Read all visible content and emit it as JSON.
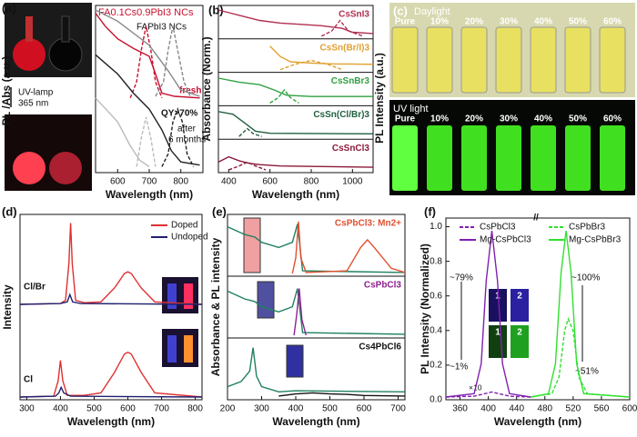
{
  "chart_data": [
    {
      "type": "line",
      "panel": "(a)",
      "xlabel": "Wavelength (nm)",
      "ylabel": "PL /Abs (a.u.)",
      "xlim": [
        530,
        870
      ],
      "xticks": [
        600,
        700,
        800
      ],
      "ylim": [
        0,
        1
      ],
      "annotations": [
        "FA0.1Cs0.9PbI3 NCs",
        "FAPbI3 NCs",
        "fresh",
        "QY>70%",
        "after",
        "6 months",
        "UV-lamp",
        "365 nm"
      ],
      "series": [
        {
          "color": "#c8102e",
          "x": [
            530,
            560,
            600,
            650,
            680,
            700,
            720,
            740,
            780,
            860
          ],
          "values": [
            0.98,
            0.9,
            0.82,
            0.76,
            0.73,
            0.71,
            0.6,
            0.48,
            0.46,
            0.45
          ]
        },
        {
          "color": "#c8102e",
          "dash": true,
          "x": [
            640,
            660,
            675,
            690,
            705,
            720,
            740
          ],
          "values": [
            0.45,
            0.55,
            0.75,
            0.9,
            0.75,
            0.55,
            0.45
          ]
        },
        {
          "color": "#888888",
          "x": [
            530,
            600,
            700,
            760,
            800,
            860
          ],
          "values": [
            1.0,
            0.93,
            0.78,
            0.62,
            0.5,
            0.46
          ]
        },
        {
          "color": "#888888",
          "dash": true,
          "x": [
            720,
            745,
            760,
            775,
            790,
            810,
            830
          ],
          "values": [
            0.46,
            0.55,
            0.75,
            0.9,
            0.75,
            0.55,
            0.46
          ]
        },
        {
          "color": "#222222",
          "x": [
            530,
            600,
            650,
            700,
            740,
            770,
            800,
            860
          ],
          "values": [
            0.72,
            0.6,
            0.48,
            0.38,
            0.25,
            0.12,
            0.05,
            0.03
          ]
        },
        {
          "color": "#222222",
          "dash": true,
          "x": [
            740,
            760,
            775,
            790,
            805,
            820,
            840
          ],
          "values": [
            0.02,
            0.1,
            0.3,
            0.38,
            0.3,
            0.1,
            0.02
          ]
        },
        {
          "color": "#bbbbbb",
          "x": [
            530,
            600,
            640,
            670,
            700
          ],
          "values": [
            0.45,
            0.3,
            0.15,
            0.06,
            0.02
          ]
        },
        {
          "color": "#bbbbbb",
          "dash": true,
          "x": [
            660,
            675,
            690,
            705,
            720
          ],
          "values": [
            0.02,
            0.2,
            0.33,
            0.2,
            0.02
          ]
        }
      ]
    },
    {
      "type": "line",
      "panel": "(b)",
      "xlabel": "Wavelength (nm)",
      "ylabel": "Absorbance (Norm.)",
      "xlim": [
        350,
        1100
      ],
      "xticks": [
        400,
        600,
        800,
        1000
      ],
      "ylim": [
        0,
        1
      ],
      "subplot_frames": true,
      "subplots": [
        {
          "label": "CsSnI3",
          "color": "#b03050",
          "series": [
            {
              "color": "#b03050",
              "x": [
                350,
                450,
                550,
                650,
                750,
                850,
                950,
                1000,
                1100
              ],
              "values": [
                1,
                0.8,
                0.6,
                0.5,
                0.45,
                0.4,
                0.3,
                0.15,
                0.1
              ]
            },
            {
              "color": "#b03050",
              "dash": true,
              "x": [
                850,
                900,
                940,
                980,
                1050
              ],
              "values": [
                0,
                0.2,
                0.6,
                0.2,
                0
              ]
            }
          ]
        },
        {
          "label": "CsSn(Br/I)3",
          "color": "#e0a030",
          "series": [
            {
              "color": "#e0a030",
              "x": [
                600,
                650,
                700,
                800,
                900,
                1100
              ],
              "values": [
                0.9,
                0.5,
                0.3,
                0.25,
                0.22,
                0.2
              ]
            },
            {
              "color": "#e0a030",
              "dash": true,
              "x": [
                650,
                720,
                800,
                880,
                950
              ],
              "values": [
                0,
                0.2,
                0.35,
                0.2,
                0
              ]
            }
          ]
        },
        {
          "label": "CsSnBr3",
          "color": "#30a040",
          "series": [
            {
              "color": "#30a040",
              "x": [
                350,
                450,
                550,
                620,
                680,
                800,
                1100
              ],
              "values": [
                0.95,
                0.8,
                0.7,
                0.5,
                0.3,
                0.25,
                0.25
              ]
            },
            {
              "color": "#30a040",
              "dash": true,
              "x": [
                600,
                640,
                670,
                700,
                740
              ],
              "values": [
                0,
                0.2,
                0.5,
                0.2,
                0
              ]
            }
          ]
        },
        {
          "label": "CsSn(Cl/Br)3",
          "color": "#206040",
          "series": [
            {
              "color": "#206040",
              "x": [
                350,
                420,
                480,
                530,
                600,
                1100
              ],
              "values": [
                0.95,
                0.85,
                0.5,
                0.2,
                0.12,
                0.1
              ]
            },
            {
              "color": "#206040",
              "dash": true,
              "x": [
                450,
                490,
                520,
                560
              ],
              "values": [
                0,
                0.3,
                0.1,
                0
              ]
            }
          ]
        },
        {
          "label": "CsSnCl3",
          "color": "#8b1a3a",
          "series": [
            {
              "color": "#8b1a3a",
              "x": [
                350,
                400,
                450,
                500,
                550,
                650,
                1100
              ],
              "values": [
                0.3,
                0.5,
                0.35,
                0.25,
                0.2,
                0.15,
                0.1
              ]
            },
            {
              "color": "#8b1a3a",
              "dash": true,
              "x": [
                400,
                450,
                490,
                530,
                580
              ],
              "values": [
                0,
                0.15,
                0.3,
                0.15,
                0
              ]
            }
          ]
        }
      ]
    },
    {
      "type": "line",
      "panel": "(d)",
      "xlabel": "Wavelength (nm)",
      "ylabel": "Intensity",
      "xlim": [
        280,
        820
      ],
      "xticks": [
        300,
        400,
        500,
        600,
        700,
        800
      ],
      "ylim": [
        0,
        1.05
      ],
      "legend": [
        {
          "name": "Doped",
          "color": "#e03030"
        },
        {
          "name": "Undoped",
          "color": "#202070"
        }
      ],
      "subplots": [
        {
          "label": "Cl/Br",
          "series": [
            {
              "color": "#e03030",
              "x": [
                280,
                400,
                415,
                425,
                430,
                435,
                445,
                470,
                520,
                560,
                590,
                600,
                610,
                640,
                680,
                820
              ],
              "values": [
                0,
                0.01,
                0.05,
                0.5,
                1.0,
                0.5,
                0.05,
                0.02,
                0.03,
                0.2,
                0.38,
                0.4,
                0.38,
                0.2,
                0.03,
                0
              ]
            },
            {
              "color": "#202070",
              "x": [
                280,
                400,
                420,
                428,
                436,
                460,
                820
              ],
              "values": [
                0,
                0.01,
                0.03,
                0.12,
                0.03,
                0.01,
                0
              ]
            }
          ]
        },
        {
          "label": "Cl",
          "series": [
            {
              "color": "#e03030",
              "x": [
                280,
                380,
                393,
                400,
                407,
                420,
                470,
                520,
                560,
                590,
                600,
                610,
                640,
                680,
                820
              ],
              "values": [
                0,
                0.01,
                0.2,
                0.45,
                0.2,
                0.02,
                0.02,
                0.05,
                0.3,
                0.53,
                0.55,
                0.53,
                0.3,
                0.05,
                0
              ]
            },
            {
              "color": "#202070",
              "x": [
                280,
                385,
                395,
                402,
                410,
                430,
                820
              ],
              "values": [
                0,
                0.01,
                0.05,
                0.12,
                0.05,
                0.01,
                0
              ]
            }
          ]
        }
      ]
    },
    {
      "type": "line",
      "panel": "(e)",
      "xlabel": "Wavelength (nm)",
      "ylabel": "Absorbance & PL intensity",
      "xlim": [
        200,
        720
      ],
      "xticks": [
        200,
        300,
        400,
        500,
        600,
        700
      ],
      "ylim": [
        0,
        1.05
      ],
      "subplot_frames": true,
      "subplots": [
        {
          "label": "CsPbCl3: Mn2+",
          "color": "#e05030",
          "series": [
            {
              "color": "#208060",
              "x": [
                200,
                250,
                280,
                300,
                350,
                390,
                405,
                420,
                720
              ],
              "values": [
                0.9,
                0.75,
                0.7,
                0.6,
                0.5,
                0.6,
                0.95,
                0.05,
                0.02
              ]
            },
            {
              "color": "#e05030",
              "x": [
                390,
                400,
                408,
                415,
                430,
                550,
                590,
                610,
                630,
                680,
                720
              ],
              "values": [
                0,
                0.3,
                1.0,
                0.3,
                0.02,
                0.05,
                0.5,
                0.65,
                0.5,
                0.1,
                0.02
              ]
            }
          ]
        },
        {
          "label": "CsPbCl3",
          "color": "#902090",
          "series": [
            {
              "color": "#208060",
              "x": [
                200,
                250,
                280,
                300,
                350,
                390,
                405,
                420,
                720
              ],
              "values": [
                0.85,
                0.7,
                0.65,
                0.55,
                0.45,
                0.55,
                0.9,
                0.05,
                0.02
              ]
            },
            {
              "color": "#902090",
              "x": [
                395,
                403,
                410,
                418,
                430
              ],
              "values": [
                0,
                0.4,
                0.9,
                0.3,
                0
              ]
            }
          ]
        },
        {
          "label": "Cs4PbCl6",
          "color": "#111111",
          "series": [
            {
              "color": "#208060",
              "x": [
                200,
                240,
                265,
                275,
                285,
                300,
                350,
                400,
                720
              ],
              "values": [
                0.2,
                0.3,
                0.5,
                0.95,
                0.4,
                0.2,
                0.1,
                0.12,
                0.1
              ]
            },
            {
              "color": "#111111",
              "x": [
                350,
                400,
                450,
                500,
                550,
                600,
                720
              ],
              "values": [
                0.02,
                0.06,
                0.08,
                0.06,
                0.05,
                0.03,
                0.02
              ]
            }
          ]
        }
      ]
    },
    {
      "type": "line",
      "panel": "(f)",
      "xlabel": "Wavelength (nm)",
      "ylabel": "PL Intensity (Normalized)",
      "xlim": [
        340,
        600
      ],
      "xticks": [
        360,
        400,
        440,
        480,
        520,
        560,
        600
      ],
      "ylim": [
        0,
        1.05
      ],
      "yticks": [
        {
          "value": 0,
          "label": "0.0"
        },
        {
          "value": 0.2,
          "label": "0.2"
        },
        {
          "value": 0.4,
          "label": "0.4"
        },
        {
          "value": 0.6,
          "label": "0.6"
        },
        {
          "value": 0.8,
          "label": "0.8"
        },
        {
          "value": 1,
          "label": "1.0"
        }
      ],
      "annotations": [
        "~79%",
        "~1%",
        "~100%",
        "~51%",
        "×10"
      ],
      "inset_labels": [
        "1",
        "2",
        "1",
        "2"
      ],
      "series": [
        {
          "name": "CsPbCl3",
          "color": "#8020b0",
          "dash": true,
          "x": [
            340,
            380,
            395,
            405,
            415,
            430,
            460
          ],
          "values": [
            0,
            0.005,
            0.02,
            0.03,
            0.02,
            0.005,
            0
          ]
        },
        {
          "name": "CsPbBr3",
          "color": "#30e030",
          "dash": true,
          "x": [
            460,
            490,
            500,
            508,
            513,
            520,
            528,
            540,
            600
          ],
          "values": [
            0,
            0.02,
            0.12,
            0.4,
            0.47,
            0.4,
            0.12,
            0.02,
            0
          ]
        },
        {
          "name": "Mg-CsPbCl3",
          "color": "#8020b0",
          "x": [
            340,
            380,
            390,
            397,
            405,
            413,
            420,
            430,
            460
          ],
          "values": [
            0,
            0.02,
            0.2,
            0.7,
            1.0,
            0.7,
            0.2,
            0.02,
            0
          ]
        },
        {
          "name": "Mg-CsPbBr3",
          "color": "#30e030",
          "x": [
            460,
            485,
            495,
            503,
            510,
            517,
            525,
            535,
            600
          ],
          "values": [
            0,
            0.02,
            0.2,
            0.75,
            1.0,
            0.75,
            0.2,
            0.02,
            0
          ]
        }
      ]
    }
  ],
  "photos": {
    "panel": "(c)",
    "ylabel": "PL Intensity (a.u.)",
    "daylight": "Daylight",
    "uv": "UV light",
    "labels": [
      "Pure",
      "10%",
      "20%",
      "30%",
      "40%",
      "50%",
      "60%"
    ]
  }
}
